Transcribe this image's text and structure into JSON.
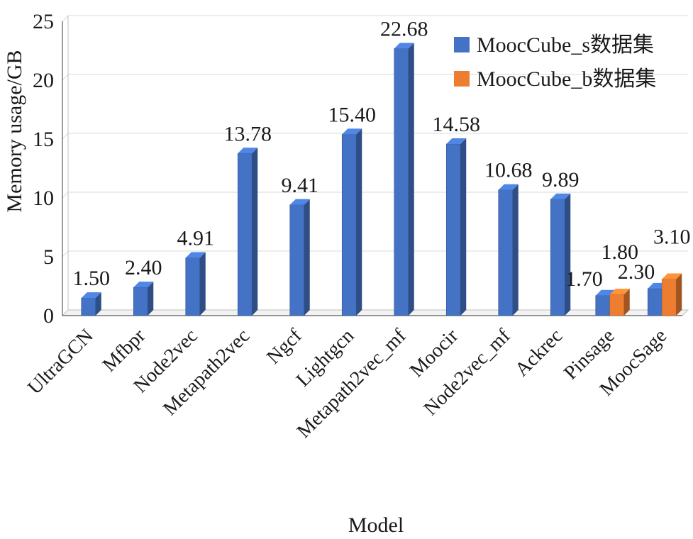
{
  "colors": {
    "MoocCube_s": "#4472c4",
    "MoocCube_b": "#ed7d31",
    "grid": "#d9d9d9"
  },
  "chart_data": {
    "type": "bar",
    "xlabel": "Model",
    "ylabel": "Memory usage/GB",
    "ylim": [
      0,
      25
    ],
    "yticks": [
      0,
      5,
      10,
      15,
      20,
      25
    ],
    "grid": true,
    "legend_position": "top-right",
    "categories": [
      "UltraGCN",
      "Mfbpr",
      "Node2vec",
      "Metapath2vec",
      "Ngcf",
      "Lightgcn",
      "Metapath2vec_mf",
      "Moocir",
      "Node2vec_mf",
      "Ackrec",
      "Pinsage",
      "MoocSage"
    ],
    "series": [
      {
        "name": "MoocCube_s数据集",
        "values": [
          1.5,
          2.4,
          4.91,
          13.78,
          9.41,
          15.4,
          22.68,
          14.58,
          10.68,
          9.89,
          1.7,
          2.3
        ],
        "labels": [
          "1.50",
          "2.40",
          "4.91",
          "13.78",
          "9.41",
          "15.40",
          "22.68",
          "14.58",
          "10.68",
          "9.89",
          "1.70",
          "2.30"
        ]
      },
      {
        "name": "MoocCube_b数据集",
        "values": [
          null,
          null,
          null,
          null,
          null,
          null,
          null,
          null,
          null,
          null,
          1.8,
          3.1
        ],
        "labels": [
          null,
          null,
          null,
          null,
          null,
          null,
          null,
          null,
          null,
          null,
          "1.80",
          "3.10"
        ]
      }
    ]
  }
}
